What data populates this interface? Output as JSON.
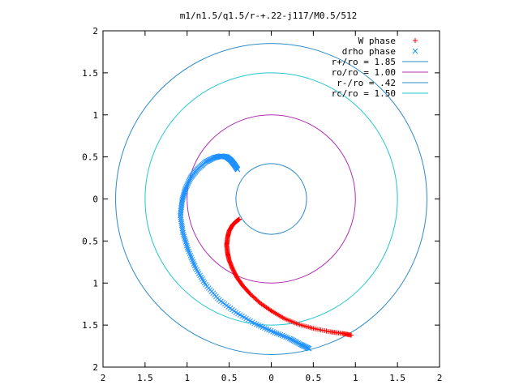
{
  "chart_data": {
    "type": "scatter",
    "title": "m1/n1.5/q1.5/r-+.22-j117/M0.5/512",
    "xlabel": "",
    "ylabel": "",
    "xlim": [
      -2,
      2
    ],
    "ylim": [
      -2,
      2
    ],
    "x_tick_values": [
      -2,
      -1.5,
      -1,
      -0.5,
      0,
      0.5,
      1,
      1.5,
      2
    ],
    "x_tick_labels": [
      "2",
      "1.5",
      "1",
      "0.5",
      "0",
      "0.5",
      "1",
      "1.5",
      "2"
    ],
    "y_tick_values": [
      2,
      1.5,
      1,
      0.5,
      0,
      -0.5,
      -1,
      -1.5,
      -2
    ],
    "y_tick_labels": [
      "2",
      "1.5",
      "1",
      "0.5",
      "0",
      "0.5",
      "1",
      "1.5",
      "2"
    ],
    "grid": false,
    "legend_position": "top-right",
    "series": [
      {
        "name": "W phase",
        "marker": "+",
        "color": "#ff0000",
        "points": [
          [
            -0.38,
            -0.24
          ],
          [
            -0.42,
            -0.27
          ],
          [
            -0.46,
            -0.31
          ],
          [
            -0.5,
            -0.38
          ],
          [
            -0.52,
            -0.46
          ],
          [
            -0.53,
            -0.55
          ],
          [
            -0.52,
            -0.64
          ],
          [
            -0.5,
            -0.73
          ],
          [
            -0.46,
            -0.83
          ],
          [
            -0.41,
            -0.93
          ],
          [
            -0.34,
            -1.03
          ],
          [
            -0.25,
            -1.13
          ],
          [
            -0.13,
            -1.24
          ],
          [
            0.0,
            -1.33
          ],
          [
            0.15,
            -1.42
          ],
          [
            0.32,
            -1.49
          ],
          [
            0.5,
            -1.54
          ],
          [
            0.7,
            -1.58
          ],
          [
            0.85,
            -1.6
          ],
          [
            0.95,
            -1.62
          ]
        ]
      },
      {
        "name": "drho phase",
        "marker": "x",
        "color": "#1e90ff",
        "points": [
          [
            -0.4,
            0.35
          ],
          [
            -0.44,
            0.41
          ],
          [
            -0.48,
            0.46
          ],
          [
            -0.53,
            0.5
          ],
          [
            -0.6,
            0.51
          ],
          [
            -0.68,
            0.49
          ],
          [
            -0.78,
            0.44
          ],
          [
            -0.88,
            0.35
          ],
          [
            -0.96,
            0.25
          ],
          [
            -1.02,
            0.12
          ],
          [
            -1.06,
            -0.02
          ],
          [
            -1.08,
            -0.2
          ],
          [
            -1.05,
            -0.4
          ],
          [
            -0.99,
            -0.6
          ],
          [
            -0.9,
            -0.82
          ],
          [
            -0.78,
            -1.02
          ],
          [
            -0.62,
            -1.2
          ],
          [
            -0.42,
            -1.35
          ],
          [
            -0.2,
            -1.48
          ],
          [
            0.02,
            -1.58
          ],
          [
            0.22,
            -1.66
          ],
          [
            0.35,
            -1.73
          ],
          [
            0.45,
            -1.78
          ]
        ]
      }
    ],
    "circles": [
      {
        "name": "r+/ro = 1.85",
        "radius": 1.85,
        "color": "#2e8bc8"
      },
      {
        "name": "ro/ro = 1.00",
        "radius": 1.0,
        "color": "#b030b0"
      },
      {
        "name": "r-/ro = .42",
        "radius": 0.42,
        "color": "#2e8bc8"
      },
      {
        "name": "rc/ro = 1.50",
        "radius": 1.5,
        "color": "#20c8d0"
      }
    ]
  }
}
